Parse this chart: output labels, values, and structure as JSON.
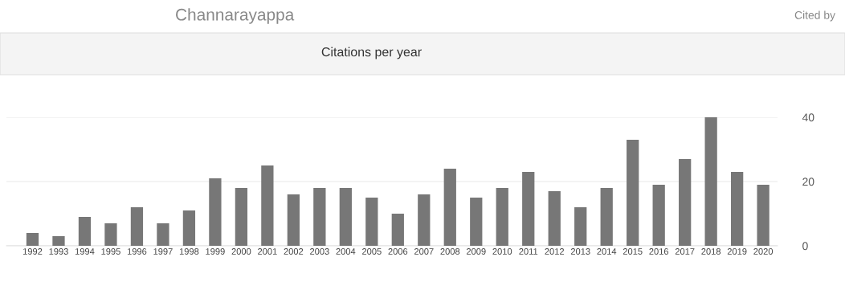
{
  "chart_data": {
    "type": "bar",
    "title": "Channarayappa",
    "subtitle": "Citations per year",
    "annotations": [
      "Cited by"
    ],
    "categories": [
      "1992",
      "1993",
      "1994",
      "1995",
      "1996",
      "1997",
      "1998",
      "1999",
      "2000",
      "2001",
      "2002",
      "2003",
      "2004",
      "2005",
      "2006",
      "2007",
      "2008",
      "2009",
      "2010",
      "2011",
      "2012",
      "2013",
      "2014",
      "2015",
      "2016",
      "2017",
      "2018",
      "2019",
      "2020"
    ],
    "values": [
      4,
      3,
      9,
      7,
      12,
      7,
      11,
      21,
      18,
      25,
      16,
      18,
      18,
      15,
      10,
      16,
      24,
      15,
      18,
      23,
      17,
      12,
      18,
      33,
      19,
      27,
      40,
      23,
      19
    ],
    "color": "#777777",
    "ylim": [
      0,
      40
    ],
    "yticks": [
      0,
      20,
      40
    ],
    "grid": "y",
    "legend": false
  }
}
